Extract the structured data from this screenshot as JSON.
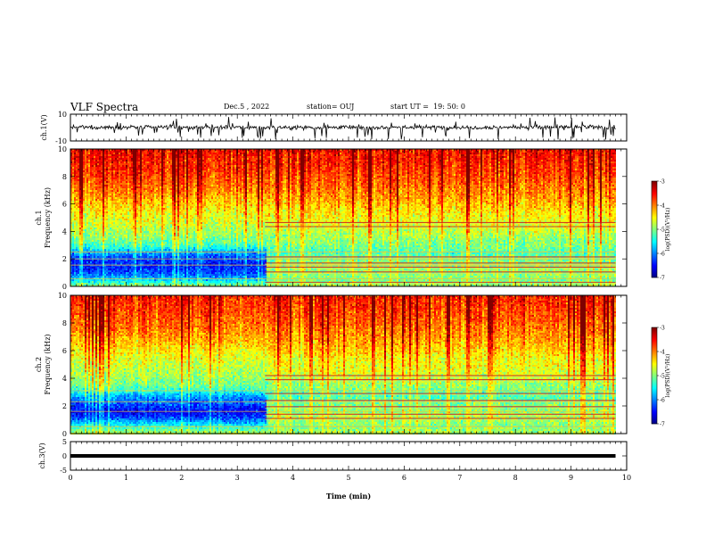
{
  "header": {
    "title": "VLF Spectra",
    "date": "Dec.5 , 2022",
    "station": "station= OUJ",
    "start": "start UT =  19: 50: 0"
  },
  "chart_data": [
    {
      "type": "line",
      "name": "waveform-ch1",
      "ylabel": "ch.1(V)",
      "ylim": [
        -10,
        10
      ],
      "yticks": [
        "10",
        "-10"
      ],
      "xlim": [
        0,
        10
      ],
      "baseline_v": 0.2,
      "noise_envelope_v": [
        -10,
        10
      ]
    },
    {
      "type": "heatmap",
      "name": "spectrogram-ch1",
      "ylabel": "Frequency (kHz)",
      "channel_label": "ch.1",
      "ylim": [
        0,
        10
      ],
      "yticks": [
        "0",
        "2",
        "4",
        "6",
        "8",
        "10"
      ],
      "xlim": [
        0,
        10
      ],
      "data_end_min": 9.8,
      "transition_min": 3.5,
      "colorbar": {
        "label": "log(PSD)(V²/Hz)",
        "range": [
          -7,
          -3
        ],
        "ticks": [
          "-3",
          "-4",
          "-5",
          "-6",
          "-7"
        ]
      },
      "before": [
        [
          0,
          -4.8
        ],
        [
          0.5,
          -5.6
        ],
        [
          1.0,
          -6.2
        ],
        [
          1.5,
          -6.4
        ],
        [
          2.0,
          -6.3
        ],
        [
          2.6,
          -5.8
        ],
        [
          3.0,
          -5.3
        ],
        [
          3.5,
          -5.0
        ],
        [
          4.5,
          -4.7
        ],
        [
          5.5,
          -4.5
        ],
        [
          6.5,
          -4.2
        ],
        [
          7.5,
          -3.9
        ],
        [
          8.5,
          -3.7
        ],
        [
          10,
          -3.5
        ]
      ],
      "after": [
        [
          0,
          -4.8
        ],
        [
          0.5,
          -5.0
        ],
        [
          1.0,
          -4.9
        ],
        [
          1.5,
          -4.9
        ],
        [
          2.0,
          -5.0
        ],
        [
          2.5,
          -5.2
        ],
        [
          3.0,
          -5.0
        ],
        [
          3.5,
          -4.9
        ],
        [
          4.5,
          -4.6
        ],
        [
          5.5,
          -4.4
        ],
        [
          6.5,
          -4.1
        ],
        [
          7.5,
          -3.9
        ],
        [
          8.5,
          -3.7
        ],
        [
          10,
          -3.5
        ]
      ],
      "lines_after_khz": [
        0.3,
        1.05,
        1.4,
        1.7,
        2.15,
        4.35,
        4.65
      ],
      "lines_all_khz": [
        0.55,
        1.55,
        2.0,
        2.5
      ]
    },
    {
      "type": "heatmap",
      "name": "spectrogram-ch2",
      "ylabel": "Frequency (kHz)",
      "channel_label": "ch.2",
      "ylim": [
        0,
        10
      ],
      "yticks": [
        "0",
        "2",
        "4",
        "6",
        "8",
        "10"
      ],
      "xlim": [
        0,
        10
      ],
      "data_end_min": 9.8,
      "transition_min": 3.5,
      "colorbar": {
        "label": "log(PSD)(V²/Hz)",
        "range": [
          -7,
          -3
        ],
        "ticks": [
          "-3",
          "-4",
          "-5",
          "-6",
          "-7"
        ]
      },
      "before": [
        [
          0,
          -4.7
        ],
        [
          0.6,
          -5.4
        ],
        [
          1.2,
          -6.2
        ],
        [
          1.6,
          -6.5
        ],
        [
          2.2,
          -6.2
        ],
        [
          2.8,
          -5.8
        ],
        [
          3.2,
          -5.3
        ],
        [
          3.6,
          -5.0
        ],
        [
          4.5,
          -4.8
        ],
        [
          5.5,
          -4.6
        ],
        [
          6.5,
          -4.3
        ],
        [
          7.5,
          -4.0
        ],
        [
          8.5,
          -3.8
        ],
        [
          10,
          -3.6
        ]
      ],
      "after": [
        [
          0,
          -4.8
        ],
        [
          0.6,
          -5.0
        ],
        [
          1.2,
          -4.8
        ],
        [
          1.6,
          -4.9
        ],
        [
          2.2,
          -5.0
        ],
        [
          2.8,
          -5.2
        ],
        [
          3.2,
          -5.0
        ],
        [
          3.6,
          -4.9
        ],
        [
          4.5,
          -4.6
        ],
        [
          5.5,
          -4.5
        ],
        [
          6.5,
          -4.2
        ],
        [
          7.5,
          -4.0
        ],
        [
          8.5,
          -3.8
        ],
        [
          10,
          -3.6
        ]
      ],
      "lines_after_khz": [
        1.1,
        1.4,
        1.95,
        2.4,
        2.9,
        3.9,
        4.2
      ],
      "lines_all_khz": [
        0.5,
        1.6,
        2.3,
        3.1
      ]
    },
    {
      "type": "line",
      "name": "waveform-ch3",
      "ylabel": "ch.3(V)",
      "ylim": [
        -5,
        5
      ],
      "yticks": [
        "5",
        "0",
        "-5"
      ],
      "xlim": [
        0,
        10
      ],
      "baseline_v": 0,
      "data_end_min": 9.8
    }
  ],
  "xaxis": {
    "label": "Time (min)",
    "ticks": [
      "0",
      "1",
      "2",
      "3",
      "4",
      "5",
      "6",
      "7",
      "8",
      "9",
      "10"
    ],
    "range": [
      0,
      10
    ]
  }
}
